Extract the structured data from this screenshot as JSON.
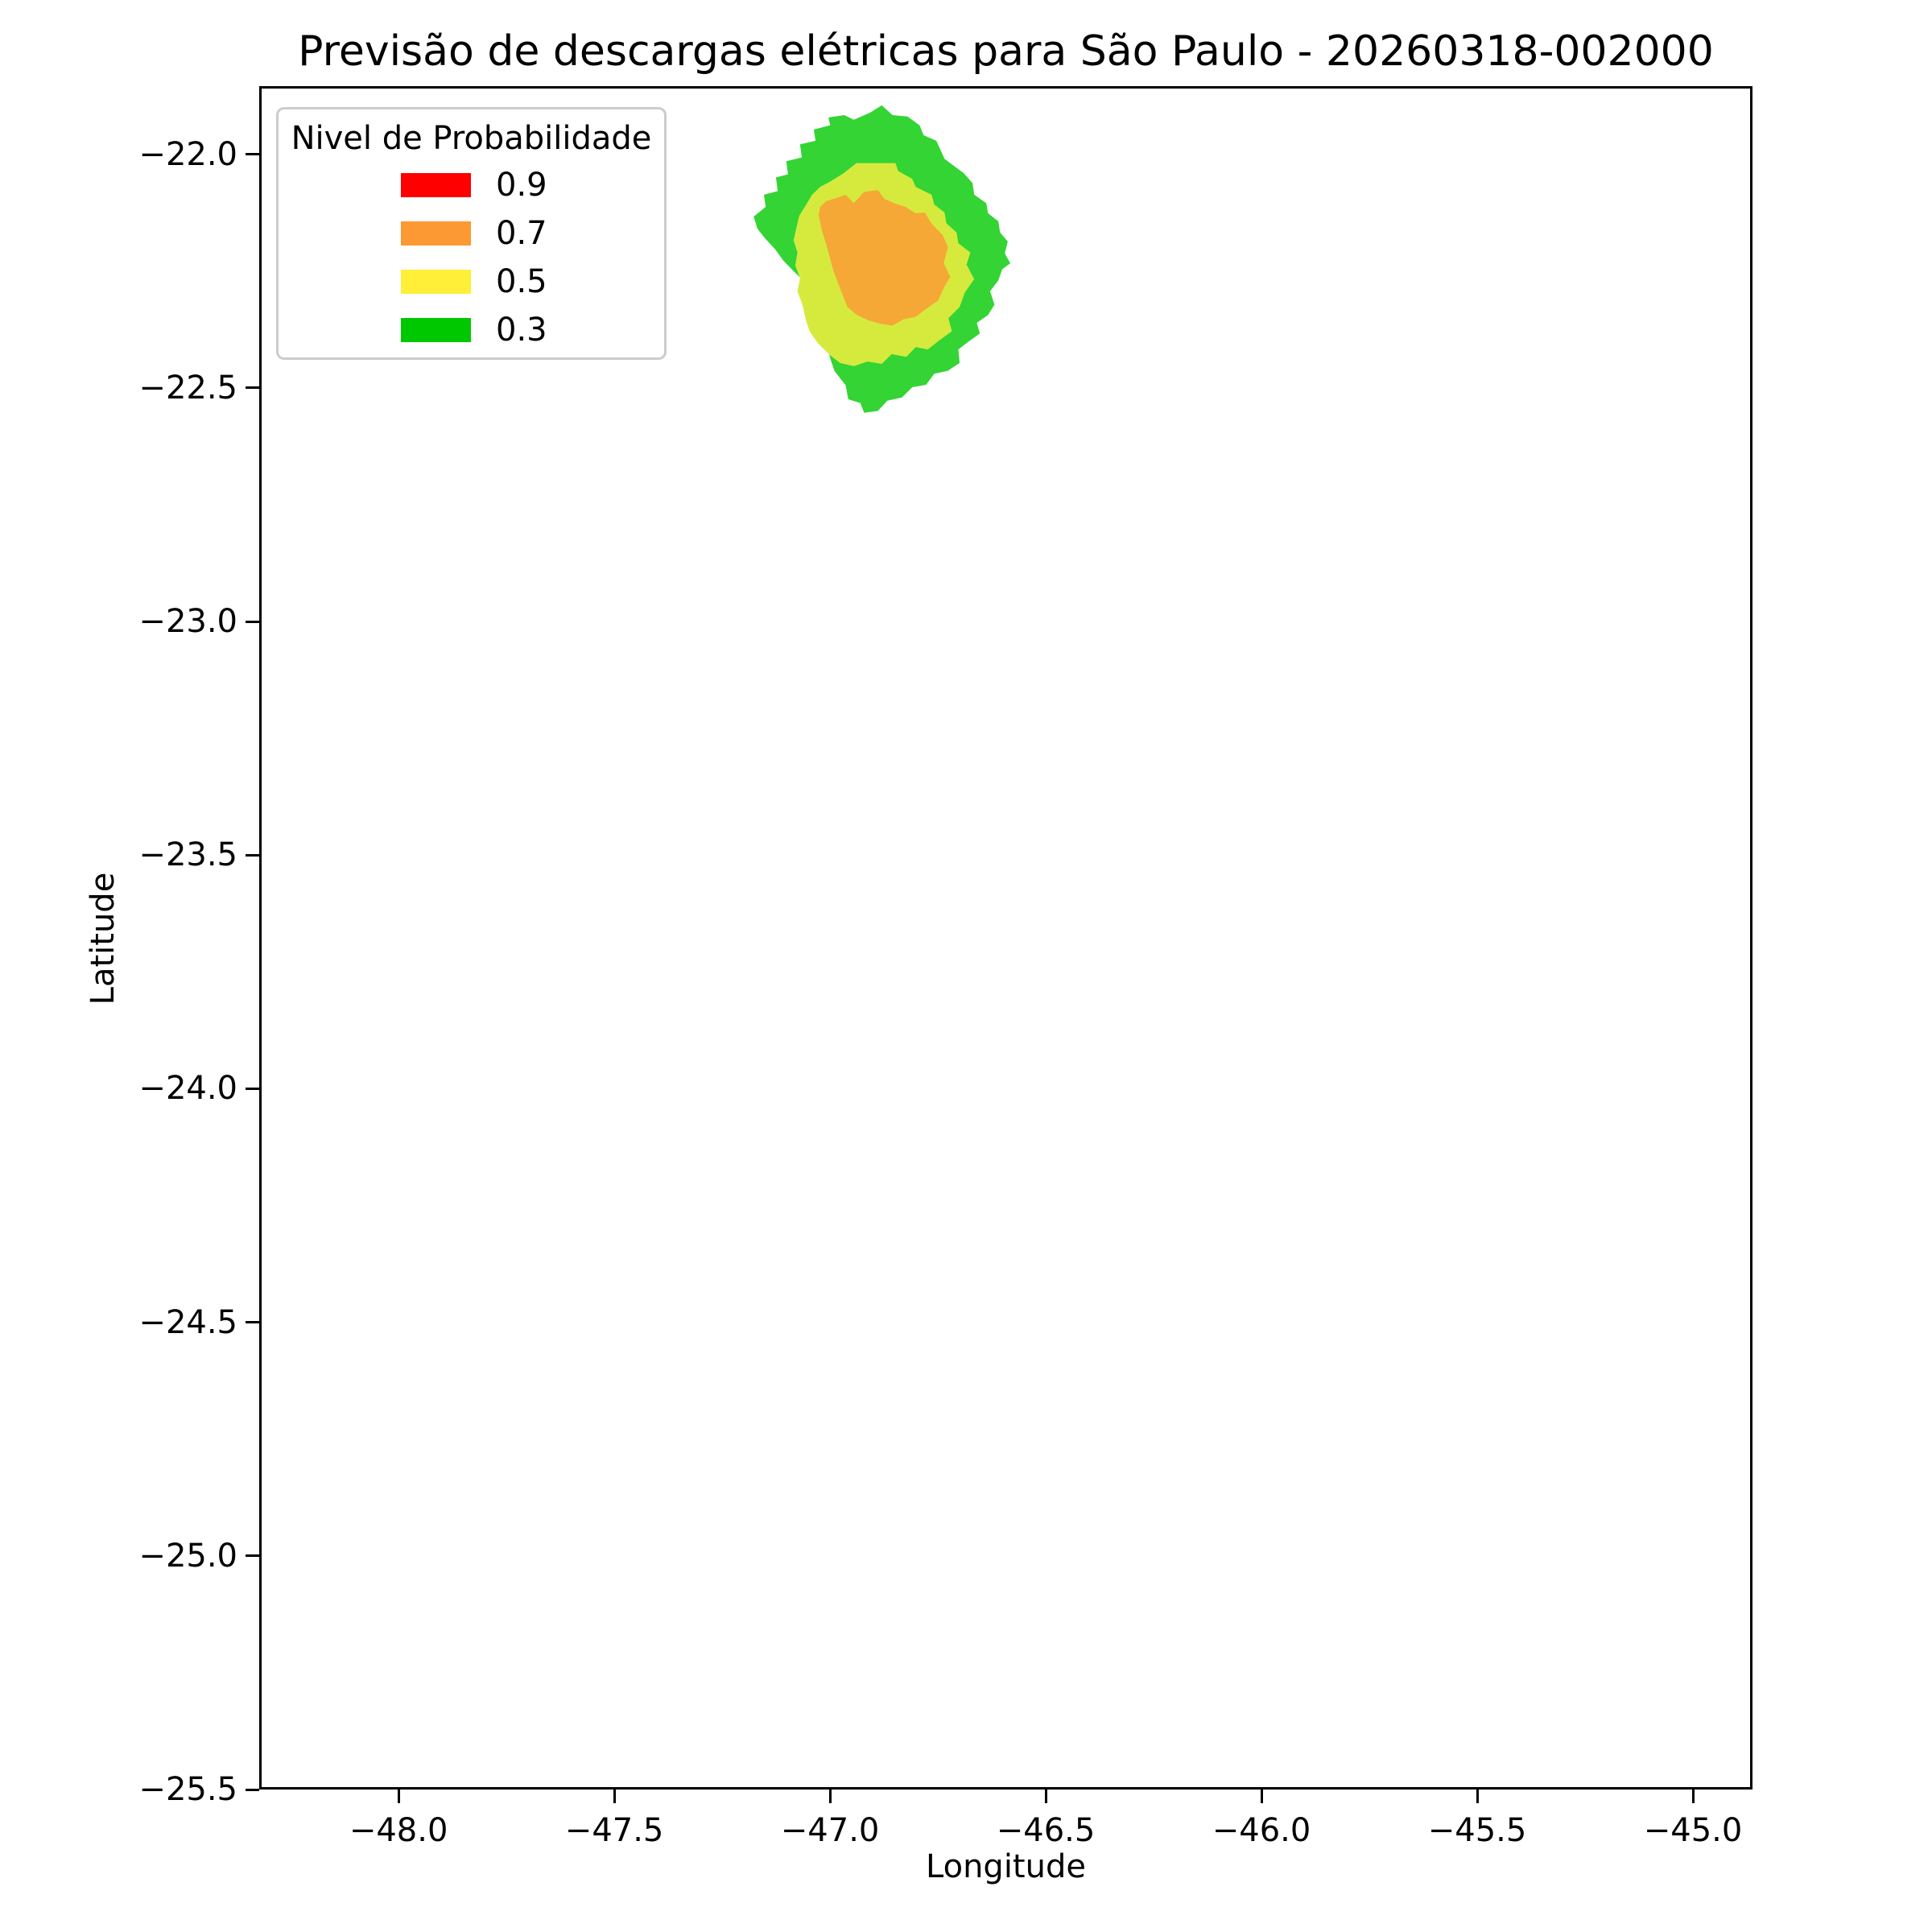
{
  "chart_data": {
    "type": "contour",
    "title": "Previsão de descargas elétricas para São Paulo - 20260318-002000",
    "xlabel": "Longitude",
    "ylabel": "Latitude",
    "xlim": [
      -48.323,
      -44.862
    ],
    "ylim": [
      -25.5,
      -21.854
    ],
    "xticks": [
      -48.0,
      -47.5,
      -47.0,
      -46.5,
      -46.0,
      -45.5,
      -45.0
    ],
    "yticks": [
      -22.0,
      -22.5,
      -23.0,
      -23.5,
      -24.0,
      -24.5,
      -25.0,
      -25.5
    ],
    "grid": false,
    "legend": {
      "title": "Nivel de Probabilidade",
      "position": "upper left",
      "entries": [
        {
          "label": "0.9",
          "color": "#ff0000"
        },
        {
          "label": "0.7",
          "color": "#fc9932"
        },
        {
          "label": "0.5",
          "color": "#ffef38"
        },
        {
          "label": "0.3",
          "color": "#00c800"
        }
      ]
    },
    "contours": [
      {
        "level": 0.3,
        "fill": "#33d434",
        "polygon": [
          [
            -46.881,
            -21.89
          ],
          [
            -46.856,
            -21.911
          ],
          [
            -46.821,
            -21.914
          ],
          [
            -46.793,
            -21.933
          ],
          [
            -46.784,
            -21.954
          ],
          [
            -46.754,
            -21.966
          ],
          [
            -46.735,
            -22.005
          ],
          [
            -46.69,
            -22.036
          ],
          [
            -46.67,
            -22.057
          ],
          [
            -46.666,
            -22.082
          ],
          [
            -46.638,
            -22.1
          ],
          [
            -46.634,
            -22.122
          ],
          [
            -46.61,
            -22.139
          ],
          [
            -46.606,
            -22.163
          ],
          [
            -46.588,
            -22.182
          ],
          [
            -46.595,
            -22.208
          ],
          [
            -46.582,
            -22.229
          ],
          [
            -46.601,
            -22.242
          ],
          [
            -46.61,
            -22.266
          ],
          [
            -46.629,
            -22.289
          ],
          [
            -46.619,
            -22.318
          ],
          [
            -46.634,
            -22.34
          ],
          [
            -46.66,
            -22.357
          ],
          [
            -46.653,
            -22.38
          ],
          [
            -46.679,
            -22.397
          ],
          [
            -46.703,
            -22.414
          ],
          [
            -46.7,
            -22.443
          ],
          [
            -46.728,
            -22.46
          ],
          [
            -46.759,
            -22.466
          ],
          [
            -46.778,
            -22.49
          ],
          [
            -46.81,
            -22.495
          ],
          [
            -46.834,
            -22.517
          ],
          [
            -46.868,
            -22.524
          ],
          [
            -46.89,
            -22.546
          ],
          [
            -46.922,
            -22.55
          ],
          [
            -46.931,
            -22.529
          ],
          [
            -46.959,
            -22.521
          ],
          [
            -46.965,
            -22.491
          ],
          [
            -46.991,
            -22.46
          ],
          [
            -47.002,
            -22.43
          ],
          [
            -47.007,
            -22.4
          ],
          [
            -47.021,
            -22.371
          ],
          [
            -47.024,
            -22.344
          ],
          [
            -47.043,
            -22.32
          ],
          [
            -47.049,
            -22.289
          ],
          [
            -47.067,
            -22.263
          ],
          [
            -47.086,
            -22.246
          ],
          [
            -47.11,
            -22.223
          ],
          [
            -47.129,
            -22.199
          ],
          [
            -47.151,
            -22.177
          ],
          [
            -47.17,
            -22.155
          ],
          [
            -47.179,
            -22.129
          ],
          [
            -47.151,
            -22.108
          ],
          [
            -47.155,
            -22.082
          ],
          [
            -47.123,
            -22.074
          ],
          [
            -47.127,
            -22.045
          ],
          [
            -47.099,
            -22.038
          ],
          [
            -47.103,
            -22.01
          ],
          [
            -47.067,
            -22.002
          ],
          [
            -47.071,
            -21.974
          ],
          [
            -47.035,
            -21.966
          ],
          [
            -47.039,
            -21.942
          ],
          [
            -47.001,
            -21.933
          ],
          [
            -47.005,
            -21.916
          ],
          [
            -46.968,
            -21.911
          ],
          [
            -46.946,
            -21.921
          ],
          [
            -46.909,
            -21.906
          ]
        ]
      },
      {
        "level": 0.5,
        "fill": "#d6ea3e",
        "polygon": [
          [
            -46.94,
            -22.014
          ],
          [
            -46.849,
            -22.014
          ],
          [
            -46.843,
            -22.031
          ],
          [
            -46.81,
            -22.048
          ],
          [
            -46.802,
            -22.065
          ],
          [
            -46.765,
            -22.082
          ],
          [
            -46.759,
            -22.103
          ],
          [
            -46.735,
            -22.12
          ],
          [
            -46.731,
            -22.143
          ],
          [
            -46.707,
            -22.163
          ],
          [
            -46.703,
            -22.186
          ],
          [
            -46.675,
            -22.206
          ],
          [
            -46.684,
            -22.232
          ],
          [
            -46.666,
            -22.263
          ],
          [
            -46.688,
            -22.292
          ],
          [
            -46.7,
            -22.323
          ],
          [
            -46.726,
            -22.347
          ],
          [
            -46.718,
            -22.375
          ],
          [
            -46.748,
            -22.395
          ],
          [
            -46.774,
            -22.414
          ],
          [
            -46.802,
            -22.409
          ],
          [
            -46.824,
            -22.43
          ],
          [
            -46.858,
            -22.424
          ],
          [
            -46.881,
            -22.445
          ],
          [
            -46.914,
            -22.44
          ],
          [
            -46.946,
            -22.45
          ],
          [
            -46.978,
            -22.443
          ],
          [
            -47.002,
            -22.426
          ],
          [
            -47.03,
            -22.4
          ],
          [
            -47.049,
            -22.375
          ],
          [
            -47.058,
            -22.349
          ],
          [
            -47.065,
            -22.32
          ],
          [
            -47.077,
            -22.289
          ],
          [
            -47.071,
            -22.261
          ],
          [
            -47.082,
            -22.234
          ],
          [
            -47.077,
            -22.206
          ],
          [
            -47.086,
            -22.18
          ],
          [
            -47.08,
            -22.155
          ],
          [
            -47.073,
            -22.127
          ],
          [
            -47.058,
            -22.105
          ],
          [
            -47.043,
            -22.082
          ],
          [
            -47.024,
            -22.065
          ],
          [
            -46.998,
            -22.052
          ],
          [
            -46.97,
            -22.036
          ]
        ]
      },
      {
        "level": 0.7,
        "fill": "#f5a835",
        "polygon": [
          [
            -47.011,
            -22.096
          ],
          [
            -46.983,
            -22.088
          ],
          [
            -46.965,
            -22.082
          ],
          [
            -46.946,
            -22.1
          ],
          [
            -46.922,
            -22.076
          ],
          [
            -46.89,
            -22.072
          ],
          [
            -46.875,
            -22.091
          ],
          [
            -46.852,
            -22.1
          ],
          [
            -46.826,
            -22.108
          ],
          [
            -46.802,
            -22.122
          ],
          [
            -46.781,
            -22.12
          ],
          [
            -46.765,
            -22.144
          ],
          [
            -46.74,
            -22.168
          ],
          [
            -46.727,
            -22.194
          ],
          [
            -46.737,
            -22.229
          ],
          [
            -46.722,
            -22.258
          ],
          [
            -46.737,
            -22.282
          ],
          [
            -46.75,
            -22.309
          ],
          [
            -46.778,
            -22.327
          ],
          [
            -46.802,
            -22.344
          ],
          [
            -46.83,
            -22.349
          ],
          [
            -46.856,
            -22.363
          ],
          [
            -46.884,
            -22.359
          ],
          [
            -46.914,
            -22.351
          ],
          [
            -46.94,
            -22.339
          ],
          [
            -46.961,
            -22.323
          ],
          [
            -46.972,
            -22.297
          ],
          [
            -46.983,
            -22.271
          ],
          [
            -46.993,
            -22.246
          ],
          [
            -47.002,
            -22.216
          ],
          [
            -47.011,
            -22.186
          ],
          [
            -47.021,
            -22.156
          ],
          [
            -47.028,
            -22.125
          ],
          [
            -47.024,
            -22.108
          ]
        ]
      }
    ]
  }
}
